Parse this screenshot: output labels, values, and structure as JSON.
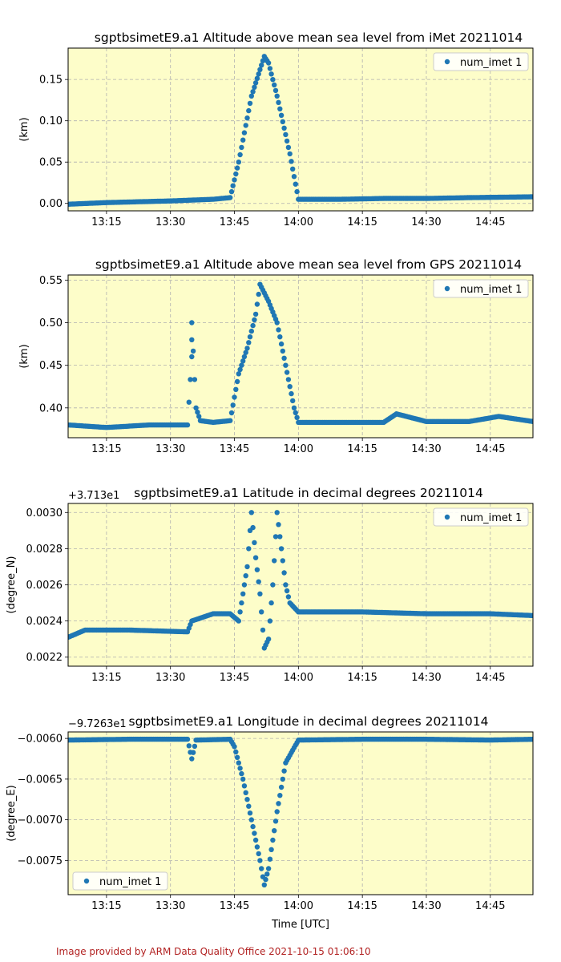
{
  "footer": "Image provided by ARM Data Quality Office 2021-10-15 01:06:10",
  "chart_data": [
    {
      "type": "scatter",
      "title": "sgptbsimetE9.a1 Altitude above mean sea level from iMet 20211014",
      "ylabel": "(km)",
      "xlabel": "",
      "offset_text": "",
      "x_ticks": [
        "13:15",
        "13:30",
        "13:45",
        "14:00",
        "14:15",
        "14:30",
        "14:45"
      ],
      "y_ticks": [
        "0.00",
        "0.05",
        "0.10",
        "0.15"
      ],
      "y_tick_values": [
        0.0,
        0.05,
        0.1,
        0.15
      ],
      "xlim": [
        "13:06",
        "14:55"
      ],
      "ylim": [
        -0.009,
        0.188
      ],
      "grid": true,
      "legend": {
        "label": "num_imet 1",
        "loc": "upper right"
      },
      "series": [
        {
          "name": "num_imet 1",
          "color": "#1f77b4",
          "x": [
            "13:06",
            "13:15",
            "13:30",
            "13:40",
            "13:44",
            "13:46",
            "13:49",
            "13:52",
            "13:53",
            "13:55",
            "13:58",
            "14:00",
            "14:10",
            "14:20",
            "14:30",
            "14:40",
            "14:55"
          ],
          "y": [
            -0.001,
            0.001,
            0.003,
            0.005,
            0.007,
            0.05,
            0.13,
            0.178,
            0.17,
            0.13,
            0.06,
            0.005,
            0.005,
            0.006,
            0.006,
            0.007,
            0.008
          ]
        }
      ]
    },
    {
      "type": "scatter",
      "title": "sgptbsimetE9.a1 Altitude above mean sea level from GPS 20211014",
      "ylabel": "(km)",
      "xlabel": "",
      "offset_text": "",
      "x_ticks": [
        "13:15",
        "13:30",
        "13:45",
        "14:00",
        "14:15",
        "14:30",
        "14:45"
      ],
      "y_ticks": [
        "0.40",
        "0.45",
        "0.50",
        "0.55"
      ],
      "y_tick_values": [
        0.4,
        0.45,
        0.5,
        0.55
      ],
      "xlim": [
        "13:06",
        "14:55"
      ],
      "ylim": [
        0.365,
        0.556
      ],
      "grid": true,
      "legend": {
        "label": "num_imet 1",
        "loc": "upper right"
      },
      "series": [
        {
          "name": "num_imet 1",
          "color": "#1f77b4",
          "x": [
            "13:06",
            "13:15",
            "13:25",
            "13:34",
            "13:35",
            "13:35",
            "13:36",
            "13:37",
            "13:40",
            "13:44",
            "13:46",
            "13:48",
            "13:50",
            "13:51",
            "13:53",
            "13:55",
            "13:57",
            "13:59",
            "14:00",
            "14:10",
            "14:20",
            "14:23",
            "14:30",
            "14:40",
            "14:47",
            "14:55"
          ],
          "y": [
            0.38,
            0.377,
            0.38,
            0.38,
            0.46,
            0.5,
            0.4,
            0.385,
            0.383,
            0.385,
            0.44,
            0.47,
            0.51,
            0.545,
            0.525,
            0.5,
            0.45,
            0.4,
            0.383,
            0.383,
            0.383,
            0.393,
            0.384,
            0.384,
            0.39,
            0.384
          ]
        }
      ]
    },
    {
      "type": "scatter",
      "title": "sgptbsimetE9.a1 Latitude in decimal degrees 20211014",
      "ylabel": "(degree_N)",
      "xlabel": "",
      "offset_text": "+3.713e1",
      "x_ticks": [
        "13:15",
        "13:30",
        "13:45",
        "14:00",
        "14:15",
        "14:30",
        "14:45"
      ],
      "y_ticks": [
        "0.0022",
        "0.0024",
        "0.0026",
        "0.0028",
        "0.0030"
      ],
      "y_tick_values": [
        0.0022,
        0.0024,
        0.0026,
        0.0028,
        0.003
      ],
      "xlim": [
        "13:06",
        "14:55"
      ],
      "ylim": [
        0.00215,
        0.00305
      ],
      "grid": true,
      "legend": {
        "label": "num_imet 1",
        "loc": "upper right"
      },
      "series": [
        {
          "name": "num_imet 1",
          "color": "#1f77b4",
          "x": [
            "13:06",
            "13:10",
            "13:20",
            "13:34",
            "13:35",
            "13:40",
            "13:44",
            "13:46",
            "13:47",
            "13:48",
            "13:49",
            "13:50",
            "13:51",
            "13:52",
            "13:53",
            "13:54",
            "13:55",
            "13:56",
            "13:57",
            "13:58",
            "14:00",
            "14:15",
            "14:30",
            "14:45",
            "14:55"
          ],
          "y": [
            0.00231,
            0.00235,
            0.00235,
            0.00234,
            0.0024,
            0.00244,
            0.00244,
            0.0024,
            0.00255,
            0.0027,
            0.003,
            0.00275,
            0.00255,
            0.00225,
            0.0023,
            0.0026,
            0.003,
            0.0028,
            0.0026,
            0.0025,
            0.00245,
            0.00245,
            0.00244,
            0.00244,
            0.00243
          ]
        }
      ]
    },
    {
      "type": "scatter",
      "title": "sgptbsimetE9.a1 Longitude in decimal degrees 20211014",
      "ylabel": "(degree_E)",
      "xlabel": "Time [UTC]",
      "offset_text": "−9.7263e1",
      "x_ticks": [
        "13:15",
        "13:30",
        "13:45",
        "14:00",
        "14:15",
        "14:30",
        "14:45"
      ],
      "y_ticks": [
        "−0.0060",
        "−0.0065",
        "−0.0070",
        "−0.0075"
      ],
      "y_tick_values": [
        -0.006,
        -0.0065,
        -0.007,
        -0.0075
      ],
      "xlim": [
        "13:06",
        "14:55"
      ],
      "ylim": [
        -0.00792,
        -0.00592
      ],
      "grid": true,
      "legend": {
        "label": "num_imet 1",
        "loc": "lower left"
      },
      "series": [
        {
          "name": "num_imet 1",
          "color": "#1f77b4",
          "x": [
            "13:06",
            "13:20",
            "13:34",
            "13:35",
            "13:36",
            "13:44",
            "13:45",
            "13:47",
            "13:49",
            "13:51",
            "13:52",
            "13:53",
            "13:55",
            "13:57",
            "14:00",
            "14:15",
            "14:30",
            "14:45",
            "14:55"
          ],
          "y": [
            -0.00602,
            -0.00601,
            -0.00601,
            -0.00625,
            -0.00602,
            -0.00601,
            -0.0061,
            -0.0065,
            -0.007,
            -0.0075,
            -0.0078,
            -0.0076,
            -0.0069,
            -0.0063,
            -0.00602,
            -0.00601,
            -0.00601,
            -0.00602,
            -0.00601
          ]
        }
      ]
    }
  ]
}
